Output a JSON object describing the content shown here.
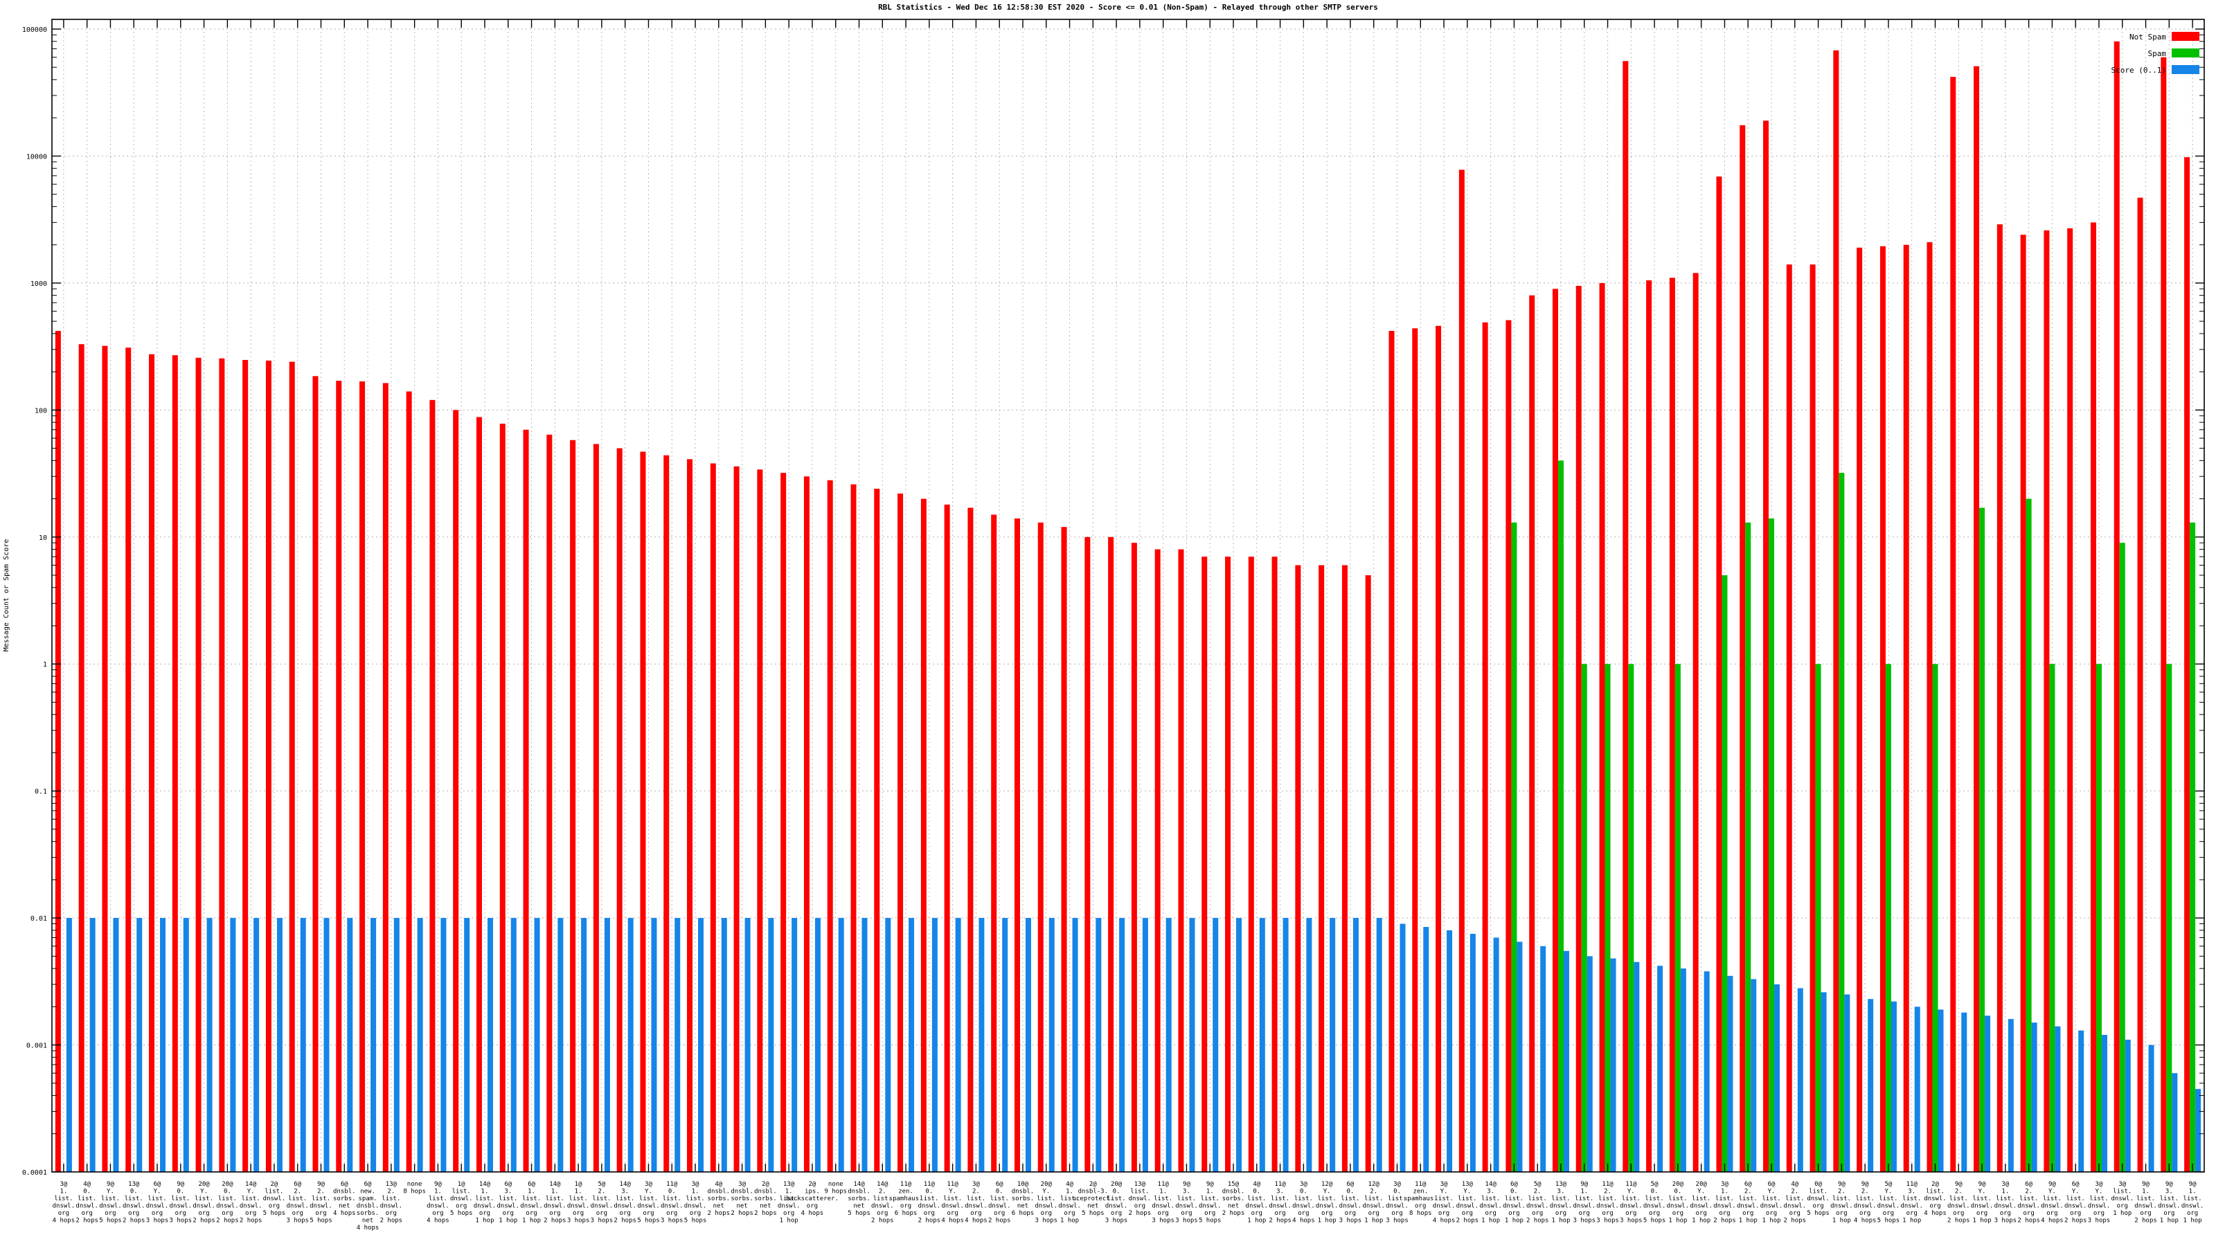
{
  "chart_data": {
    "type": "bar",
    "title": "RBL Statistics - Wed Dec 16 12:58:30 EST 2020 - Score <= 0.01 (Non-Spam) - Relayed through other SMTP servers",
    "ylabel": "Message Count or Spam Score",
    "xlabel": "",
    "y_scale": "log",
    "ylim": [
      0.0001,
      100000
    ],
    "y_ticks": [
      100000,
      10000,
      1000,
      100,
      10,
      1,
      0.1,
      0.01,
      0.001,
      0.0001
    ],
    "y_tick_labels": [
      "100000",
      "10000",
      "1000",
      "100",
      "10",
      "1",
      "0.1",
      "0.01",
      "0.001",
      "0.0001"
    ],
    "grid": "on",
    "legend_position": "top-right",
    "legend": [
      {
        "label": "Not Spam",
        "color": "#ff0000"
      },
      {
        "label": "Spam",
        "color": "#00c000"
      },
      {
        "label": "Score (0..1)",
        "color": "#1585e8"
      }
    ],
    "categories": [
      "3@\n1.\nlist.\ndnswl.\norg\n4 hops",
      "4@\n0.\nlist.\ndnswl.\norg\n2 hops",
      "9@\nY.\nlist.\ndnswl.\norg\n5 hops",
      "13@\n0.\nlist.\ndnswl.\norg\n2 hops",
      "6@\nY.\nlist.\ndnswl.\norg\n3 hops",
      "9@\n0.\nlist.\ndnswl.\norg\n3 hops",
      "20@\nY.\nlist.\ndnswl.\norg\n2 hops",
      "20@\n0.\nlist.\ndnswl.\norg\n2 hops",
      "14@\nY.\nlist.\ndnswl.\norg\n2 hops",
      "2@\nlist.\ndnswl.\norg\n5 hops",
      "6@\n2.\nlist.\ndnswl.\norg\n3 hops",
      "9@\n2.\nlist.\ndnswl.\norg\n5 hops",
      "6@\ndnsbl.\nsorbs.\nnet\n4 hops",
      "6@\nnew.\nspam.\ndnsbl.\nsorbs.\nnet\n4 hops",
      "13@\n2.\nlist.\ndnswl.\norg\n2 hops",
      "none\n8 hops",
      "9@\n1.\nlist.\ndnswl.\norg\n4 hops",
      "1@\nlist.\ndnswl.\norg\n5 hops",
      "14@\n1.\nlist.\ndnswl.\norg\n1 hop",
      "6@\n3.\nlist.\ndnswl.\norg\n1 hop",
      "6@\n1.\nlist.\ndnswl.\norg\n1 hop",
      "14@\n1.\nlist.\ndnswl.\norg\n2 hops",
      "1@\n1.\nlist.\ndnswl.\norg\n3 hops",
      "5@\n2.\nlist.\ndnswl.\norg\n3 hops",
      "14@\n3.\nlist.\ndnswl.\norg\n2 hops",
      "3@\nY.\nlist.\ndnswl.\norg\n5 hops",
      "11@\n0.\nlist.\ndnswl.\norg\n3 hops",
      "3@\n1.\nlist.\ndnswl.\norg\n5 hops",
      "4@\ndnsbl.\nsorbs.\nnet\n2 hops",
      "3@\ndnsbl.\nsorbs.\nnet\n2 hops",
      "2@\ndnsbl.\nsorbs.\nnet\n2 hops",
      "13@\n1.\nlist.\ndnswl.\norg\n1 hop",
      "2@\nips.\nbackscatterer.\norg\n4 hops",
      "none\n9 hops",
      "14@\ndnsbl.\nsorbs.\nnet\n5 hops",
      "14@\n2.\nlist.\ndnswl.\norg\n2 hops",
      "11@\nzen.\nspamhaus.\norg\n6 hops",
      "11@\n0.\nlist.\ndnswl.\norg\n2 hops",
      "11@\nY.\nlist.\ndnswl.\norg\n4 hops",
      "3@\n2.\nlist.\ndnswl.\norg\n4 hops",
      "6@\n0.\nlist.\ndnswl.\norg\n2 hops",
      "10@\ndnsbl.\nsorbs.\nnet\n6 hops",
      "20@\nY.\nlist.\ndnswl.\norg\n3 hops",
      "4@\n1.\nlist.\ndnswl.\norg\n1 hop",
      "2@\ndnsbl-3.\nuceprotect.\nnet\n5 hops",
      "20@\n0.\nlist.\ndnswl.\norg\n3 hops",
      "13@\nlist.\ndnswl.\norg\n2 hops",
      "11@\n1.\nlist.\ndnswl.\norg\n3 hops",
      "9@\n3.\nlist.\ndnswl.\norg\n3 hops",
      "9@\n1.\nlist.\ndnswl.\norg\n5 hops",
      "15@\ndnsbl.\nsorbs.\nnet\n2 hops",
      "4@\n0.\nlist.\ndnswl.\norg\n1 hop",
      "11@\n3.\nlist.\ndnswl.\norg\n2 hops",
      "3@\n0.\nlist.\ndnswl.\norg\n4 hops",
      "12@\nY.\nlist.\ndnswl.\norg\n1 hop",
      "6@\n0.\nlist.\ndnswl.\norg\n3 hops",
      "12@\n2.\nlist.\ndnswl.\norg\n1 hop",
      "3@\n0.\nlist.\ndnswl.\norg\n3 hops",
      "11@\nzen.\nspamhaus.\norg\n8 hops",
      "3@\nY.\nlist.\ndnswl.\norg\n4 hops",
      "13@\nY.\nlist.\ndnswl.\norg\n2 hops",
      "14@\n3.\nlist.\ndnswl.\norg\n1 hop",
      "6@\n0.\nlist.\ndnswl.\norg\n1 hop",
      "5@\n2.\nlist.\ndnswl.\norg\n2 hops",
      "13@\n3.\nlist.\ndnswl.\norg\n1 hop",
      "9@\n1.\nlist.\ndnswl.\norg\n3 hops",
      "11@\n2.\nlist.\ndnswl.\norg\n3 hops",
      "11@\nY.\nlist.\ndnswl.\norg\n3 hops",
      "5@\n0.\nlist.\ndnswl.\norg\n5 hops",
      "20@\n0.\nlist.\ndnswl.\norg\n1 hop",
      "20@\nY.\nlist.\ndnswl.\norg\n1 hop",
      "3@\n1.\nlist.\ndnswl.\norg\n2 hops",
      "6@\n2.\nlist.\ndnswl.\norg\n1 hop",
      "6@\nY.\nlist.\ndnswl.\norg\n1 hop",
      "4@\n2.\nlist.\ndnswl.\norg\n2 hops",
      "0@\nlist.\ndnswl.\norg\n5 hops",
      "9@\n2.\nlist.\ndnswl.\norg\n1 hop",
      "9@\n2.\nlist.\ndnswl.\norg\n4 hops",
      "5@\nY.\nlist.\ndnswl.\norg\n5 hops",
      "11@\n3.\nlist.\ndnswl.\norg\n1 hop",
      "2@\nlist.\ndnswl.\norg\n4 hops",
      "9@\n2.\nlist.\ndnswl.\norg\n2 hops",
      "9@\nY.\nlist.\ndnswl.\norg\n1 hop",
      "3@\n1.\nlist.\ndnswl.\norg\n3 hops",
      "6@\n2.\nlist.\ndnswl.\norg\n2 hops",
      "9@\nY.\nlist.\ndnswl.\norg\n4 hops",
      "6@\nY.\nlist.\ndnswl.\norg\n2 hops",
      "3@\nY.\nlist.\ndnswl.\norg\n3 hops",
      "3@\nlist.\ndnswl.\norg\n1 hop",
      "9@\n1.\nlist.\ndnswl.\norg\n2 hops",
      "9@\n3.\nlist.\ndnswl.\norg\n1 hop",
      "9@\n1.\nlist.\ndnswl.\norg\n1 hop"
    ],
    "series": [
      {
        "name": "Not Spam",
        "color": "#ff0000",
        "values": [
          420,
          330,
          320,
          310,
          275,
          270,
          258,
          255,
          248,
          245,
          240,
          185,
          170,
          168,
          163,
          140,
          120,
          100,
          88,
          78,
          70,
          64,
          58,
          54,
          50,
          47,
          44,
          41,
          38,
          36,
          34,
          32,
          30,
          28,
          26,
          24,
          22,
          20,
          18,
          17,
          15,
          14,
          13,
          12,
          10,
          10,
          9,
          8,
          8,
          7,
          7,
          7,
          7,
          6,
          6,
          6,
          5,
          420,
          440,
          460,
          7800,
          490,
          510,
          800,
          900,
          950,
          1000,
          56000,
          1050,
          1100,
          1200,
          6900,
          17500,
          19000,
          1400,
          1400,
          68000,
          1900,
          1950,
          2000,
          2100,
          42000,
          51000,
          2900,
          2400,
          2600,
          2700,
          3000,
          80000,
          4700,
          60000,
          9800
        ]
      },
      {
        "name": "Spam",
        "color": "#00c000",
        "values": [
          0,
          0,
          0,
          0,
          0,
          0,
          0,
          0,
          0,
          0,
          0,
          0,
          0,
          0,
          0,
          0,
          0,
          0,
          0,
          0,
          0,
          0,
          0,
          0,
          0,
          0,
          0,
          0,
          0,
          0,
          0,
          0,
          0,
          0,
          0,
          0,
          0,
          0,
          0,
          0,
          0,
          0,
          0,
          0,
          0,
          0,
          0,
          0,
          0,
          0,
          0,
          0,
          0,
          0,
          0,
          0,
          0,
          0,
          0,
          0,
          0,
          0,
          13,
          0,
          40,
          1,
          1,
          1,
          0,
          1,
          0,
          5,
          13,
          14,
          0,
          1,
          32,
          0,
          1,
          0,
          1,
          0,
          17,
          0,
          20,
          1,
          0,
          1,
          9,
          0,
          1,
          13
        ]
      },
      {
        "name": "Score (0..1)",
        "color": "#1585e8",
        "values": [
          0.01,
          0.01,
          0.01,
          0.01,
          0.01,
          0.01,
          0.01,
          0.01,
          0.01,
          0.01,
          0.01,
          0.01,
          0.01,
          0.01,
          0.01,
          0.01,
          0.01,
          0.01,
          0.01,
          0.01,
          0.01,
          0.01,
          0.01,
          0.01,
          0.01,
          0.01,
          0.01,
          0.01,
          0.01,
          0.01,
          0.01,
          0.01,
          0.01,
          0.01,
          0.01,
          0.01,
          0.01,
          0.01,
          0.01,
          0.01,
          0.01,
          0.01,
          0.01,
          0.01,
          0.01,
          0.01,
          0.01,
          0.01,
          0.01,
          0.01,
          0.01,
          0.01,
          0.01,
          0.01,
          0.01,
          0.01,
          0.01,
          0.009,
          0.0085,
          0.008,
          0.0075,
          0.007,
          0.0065,
          0.006,
          0.0055,
          0.005,
          0.0048,
          0.0045,
          0.0042,
          0.004,
          0.0038,
          0.0035,
          0.0033,
          0.003,
          0.0028,
          0.0026,
          0.0025,
          0.0023,
          0.0022,
          0.002,
          0.0019,
          0.0018,
          0.0017,
          0.0016,
          0.0015,
          0.0014,
          0.0013,
          0.0012,
          0.0011,
          0.001,
          0.0006,
          0.00045
        ]
      }
    ]
  }
}
